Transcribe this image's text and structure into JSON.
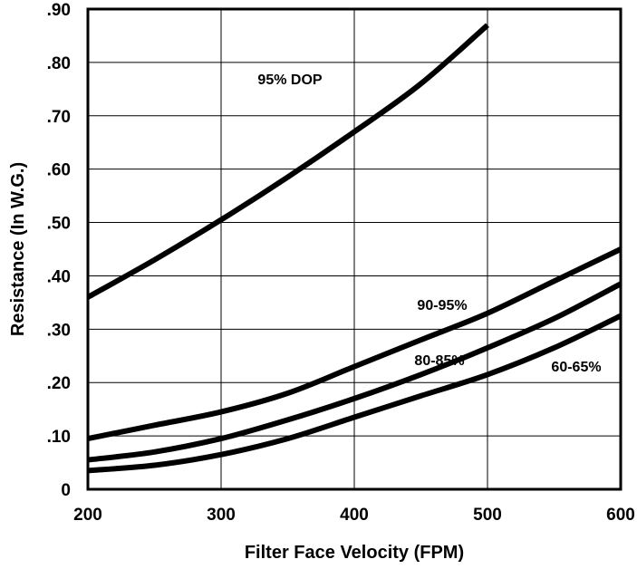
{
  "chart_data": {
    "type": "line",
    "xlabel": "Filter Face Velocity (FPM)",
    "ylabel": "Resistance (In W.G.)",
    "xlim": [
      200,
      600
    ],
    "ylim": [
      0,
      0.9
    ],
    "x_ticks": [
      200,
      300,
      400,
      500,
      600
    ],
    "x_tick_labels": [
      "200",
      "300",
      "400",
      "500",
      "600"
    ],
    "y_ticks": [
      0,
      0.1,
      0.2,
      0.3,
      0.4,
      0.5,
      0.6,
      0.7,
      0.8,
      0.9
    ],
    "y_tick_labels": [
      "0",
      ".10",
      ".20",
      ".30",
      ".40",
      ".50",
      ".60",
      ".70",
      ".80",
      ".90"
    ],
    "grid": true,
    "series": [
      {
        "name": "95% DOP",
        "points": [
          [
            200,
            0.36
          ],
          [
            250,
            0.43
          ],
          [
            300,
            0.505
          ],
          [
            350,
            0.585
          ],
          [
            400,
            0.67
          ],
          [
            450,
            0.76
          ],
          [
            500,
            0.87
          ]
        ]
      },
      {
        "name": "90-95%",
        "points": [
          [
            200,
            0.095
          ],
          [
            250,
            0.12
          ],
          [
            300,
            0.145
          ],
          [
            350,
            0.18
          ],
          [
            400,
            0.23
          ],
          [
            450,
            0.28
          ],
          [
            500,
            0.33
          ],
          [
            550,
            0.39
          ],
          [
            600,
            0.45
          ]
        ]
      },
      {
        "name": "80-85%",
        "points": [
          [
            200,
            0.055
          ],
          [
            250,
            0.07
          ],
          [
            300,
            0.095
          ],
          [
            350,
            0.13
          ],
          [
            400,
            0.17
          ],
          [
            450,
            0.215
          ],
          [
            500,
            0.265
          ],
          [
            550,
            0.32
          ],
          [
            600,
            0.385
          ]
        ]
      },
      {
        "name": "60-65%",
        "points": [
          [
            200,
            0.035
          ],
          [
            250,
            0.045
          ],
          [
            300,
            0.065
          ],
          [
            350,
            0.095
          ],
          [
            400,
            0.135
          ],
          [
            450,
            0.175
          ],
          [
            500,
            0.215
          ],
          [
            550,
            0.265
          ],
          [
            600,
            0.325
          ]
        ]
      }
    ],
    "annotations": [
      {
        "text": "95% DOP",
        "series": "95% DOP"
      },
      {
        "text": "90-95%",
        "series": "90-95%"
      },
      {
        "text": "80-85%",
        "series": "80-85%"
      },
      {
        "text": "60-65%",
        "series": "60-65%"
      }
    ]
  }
}
